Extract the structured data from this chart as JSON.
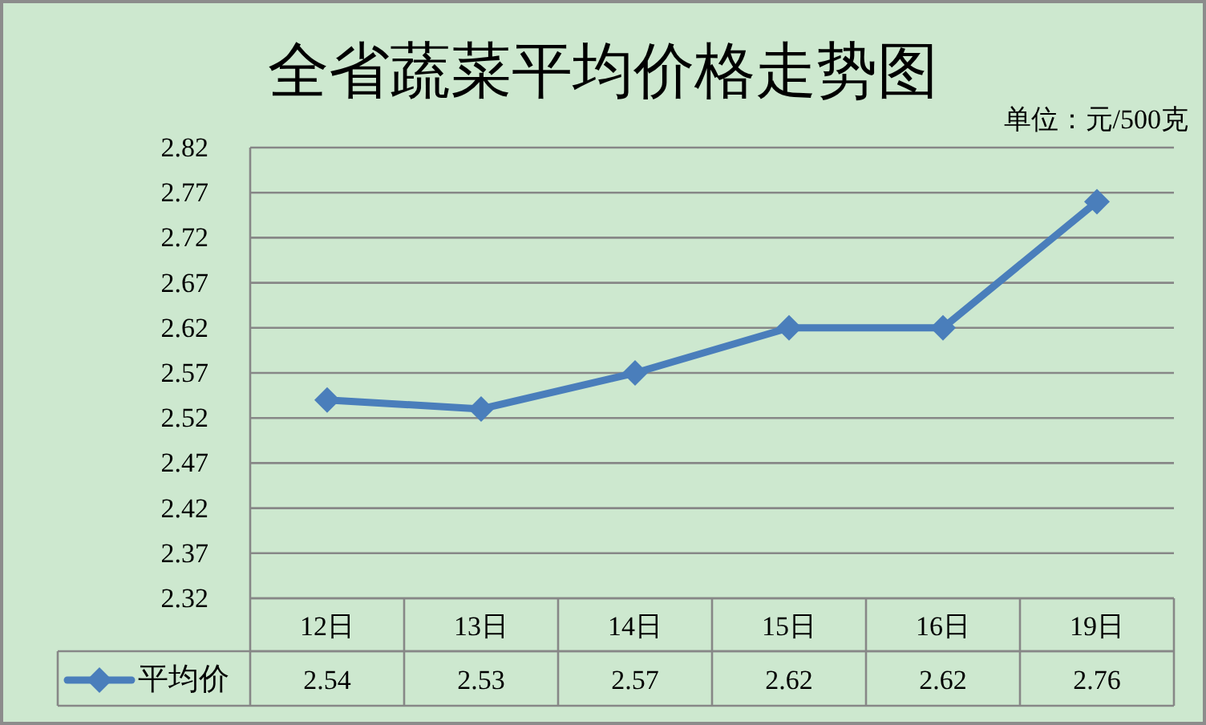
{
  "chart_data": {
    "type": "line",
    "title": "全省蔬菜平均价格走势图",
    "annotations": [
      "单位：元/500克"
    ],
    "categories": [
      "12日",
      "13日",
      "14日",
      "15日",
      "16日",
      "19日"
    ],
    "series": [
      {
        "name": "平均价",
        "color": "#4a7ebb",
        "values": [
          2.54,
          2.53,
          2.57,
          2.62,
          2.62,
          2.76
        ]
      }
    ],
    "ylim": [
      2.32,
      2.82
    ],
    "yticks": [
      2.32,
      2.37,
      2.42,
      2.47,
      2.52,
      2.57,
      2.62,
      2.67,
      2.72,
      2.77,
      2.82
    ],
    "grid": "y",
    "marker": "diamond",
    "line_style": "solid",
    "data_labels": true,
    "legend": "bottom"
  }
}
